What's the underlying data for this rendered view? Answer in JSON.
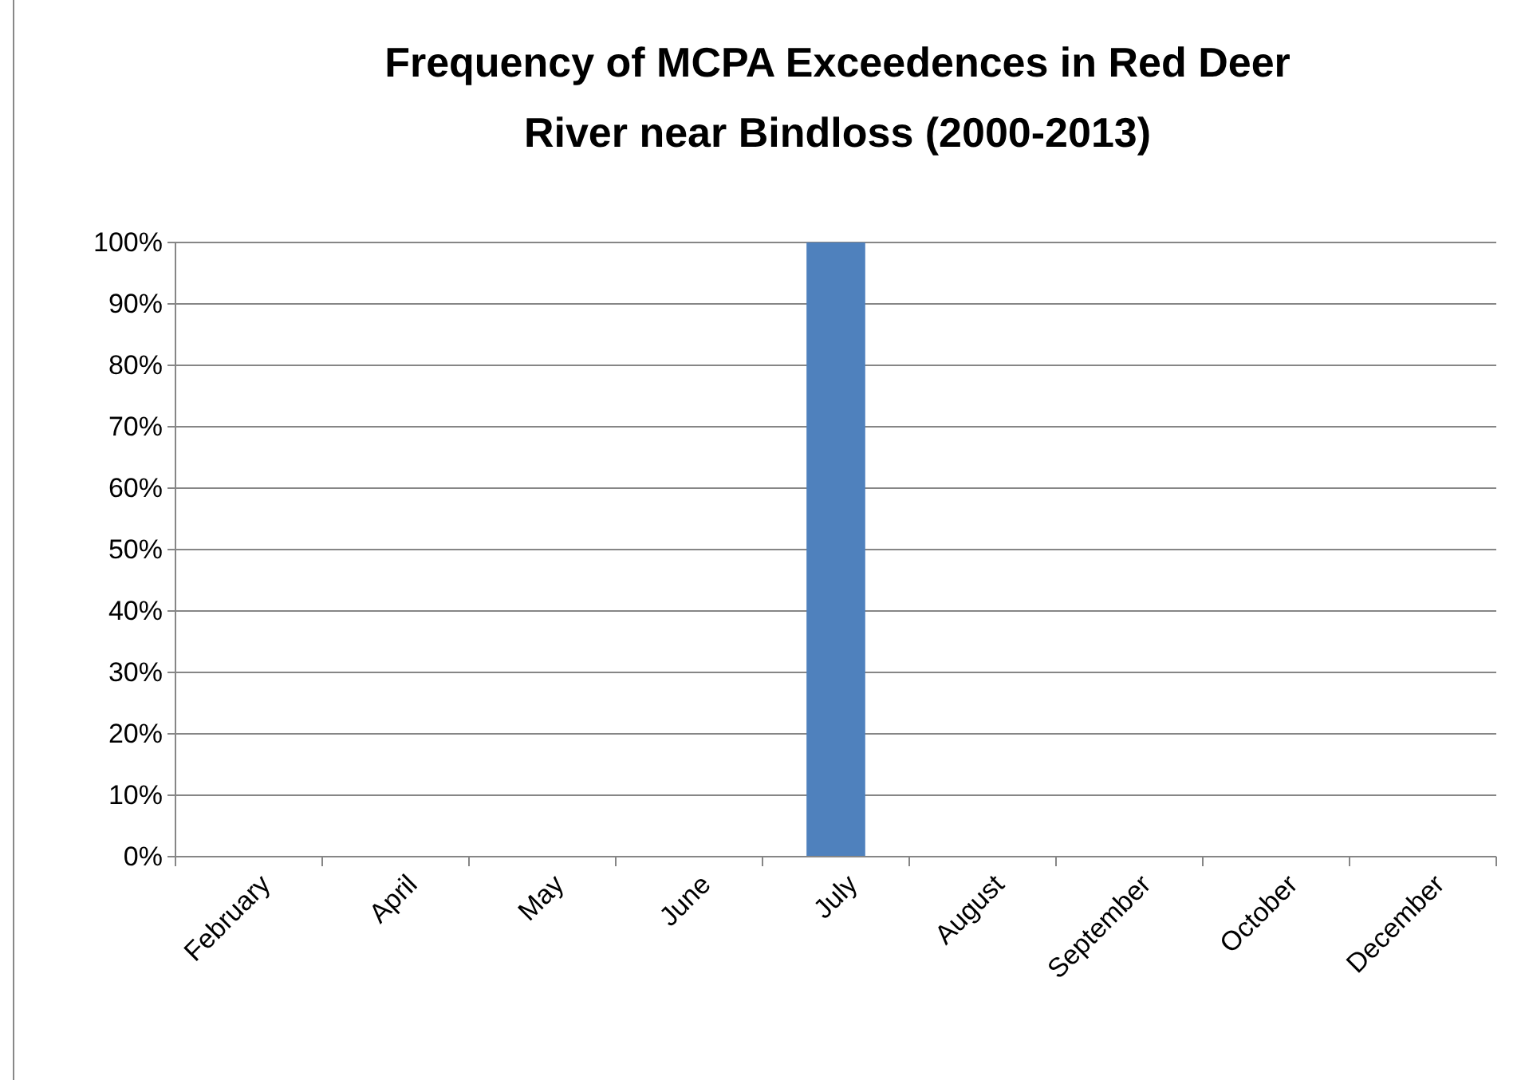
{
  "chart_data": {
    "type": "bar",
    "title": "Frequency of MCPA Exceedences in Red Deer River near Bindloss (2000-2013)",
    "categories": [
      "February",
      "April",
      "May",
      "June",
      "July",
      "August",
      "September",
      "October",
      "December"
    ],
    "values": [
      0,
      0,
      0,
      0,
      100,
      0,
      0,
      0,
      0
    ],
    "color": "#4f81bd",
    "ylim": [
      0,
      100
    ],
    "yticks": [
      {
        "value": 0,
        "label": "0%"
      },
      {
        "value": 10,
        "label": "10%"
      },
      {
        "value": 20,
        "label": "20%"
      },
      {
        "value": 30,
        "label": "30%"
      },
      {
        "value": 40,
        "label": "40%"
      },
      {
        "value": 50,
        "label": "50%"
      },
      {
        "value": 60,
        "label": "60%"
      },
      {
        "value": 70,
        "label": "70%"
      },
      {
        "value": 80,
        "label": "80%"
      },
      {
        "value": 90,
        "label": "90%"
      },
      {
        "value": 100,
        "label": "100%"
      }
    ],
    "grid": "y"
  }
}
